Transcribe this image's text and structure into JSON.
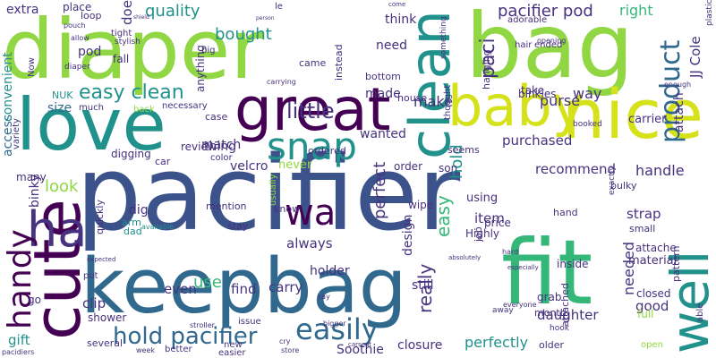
{
  "palette": {
    "deep_purple": "#440154",
    "indigo": "#3b528b",
    "blue": "#31688e",
    "teal": "#21918c",
    "green": "#35b779",
    "lime": "#90d743",
    "yellow": "#d5e21a",
    "dark_blue": "#46327e"
  },
  "words": [
    "diaper",
    "bag",
    "pacifier",
    "keepbag",
    "fit",
    "love",
    "great",
    "nice",
    "baby",
    "cute",
    "clean",
    "ha",
    "wa",
    "snap",
    "well",
    "handy",
    "easily",
    "hold pacifier",
    "little",
    "product",
    "easy clean",
    "paci",
    "pacifier pod",
    "quality",
    "bought",
    "look",
    "use",
    "perfect",
    "really",
    "made",
    "make",
    "JJ Cole",
    "hold",
    "easy",
    "velcro",
    "recommend",
    "purchased",
    "handle",
    "strap",
    "needed",
    "daughter",
    "closure",
    "Soothie",
    "perfectly",
    "good",
    "material",
    "purse",
    "way",
    "attach",
    "carrier",
    "never",
    "wanted",
    "match",
    "thing",
    "access",
    "convenient",
    "size",
    "binky",
    "gift",
    "clip",
    "find",
    "carry",
    "holder",
    "always",
    "even",
    "design",
    "still",
    "item",
    "using",
    "order",
    "need",
    "think",
    "right",
    "extra",
    "place",
    "loop",
    "tight",
    "stylish",
    "fall",
    "doe",
    "pod",
    "anything",
    "came",
    "instead",
    "bottom",
    "NUK",
    "much",
    "variety",
    "many",
    "digging",
    "review",
    "dig",
    "arm",
    "dad",
    "stay",
    "mention",
    "quickly",
    "usually",
    "know",
    "ordered",
    "seems",
    "wipe",
    "price",
    "Highly",
    "son",
    "job",
    "grab",
    "month",
    "older",
    "attached",
    "hook",
    "inside",
    "closed",
    "pattern",
    "full",
    "able",
    "open",
    "attache",
    "small",
    "bulky",
    "hand",
    "take",
    "binkies",
    "hanging",
    "house",
    "thought",
    "ended",
    "hair",
    "adorable",
    "opening",
    "plastic",
    "something",
    "case",
    "necessary",
    "back",
    "big",
    "carrying",
    "le",
    "come",
    "available",
    "color",
    "car",
    "go",
    "put",
    "shower",
    "several",
    "better",
    "new",
    "easier",
    "store",
    "cry",
    "issue",
    "carseat",
    "pacidiers",
    "week",
    "stroller",
    "bigger",
    "say",
    "away",
    "everyone",
    "especially",
    "absolutely",
    "expected",
    "Now",
    "diaper",
    "pouch",
    "allow",
    "shield",
    "person",
    "enough",
    "booked",
    "exactly",
    "hard"
  ]
}
